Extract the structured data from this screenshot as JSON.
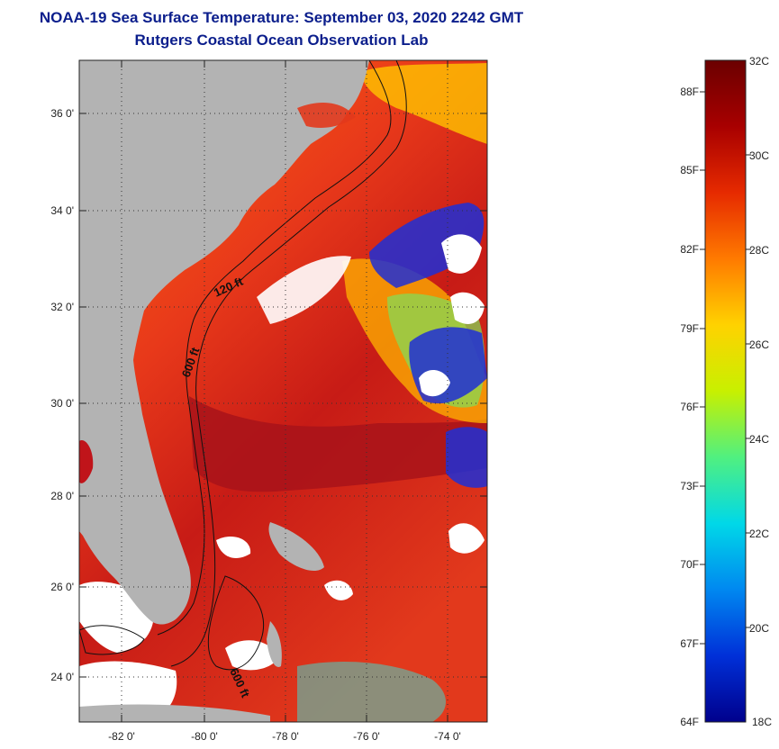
{
  "header": {
    "title": "NOAA-19 Sea Surface Temperature:  September 03, 2020 2242 GMT",
    "subtitle": "Rutgers Coastal Ocean Observation Lab"
  },
  "map": {
    "lat_ticks": [
      "24 0'",
      "26 0'",
      "28 0'",
      "30 0'",
      "32 0'",
      "34 0'",
      "36 0'"
    ],
    "lon_ticks": [
      "-82 0'",
      "-80 0'",
      "-78 0'",
      "-76 0'",
      "-74 0'"
    ],
    "contour_labels": [
      "120 ft",
      "600 ft",
      "600 ft"
    ],
    "colors": {
      "land": "#b3b3b3",
      "cloud": "#ffffff",
      "warm": "#e2391c",
      "hot": "#a3111a",
      "cool": "#1f2fd6"
    }
  },
  "colorbar": {
    "celsius_labels": [
      "32C",
      "30C",
      "28C",
      "26C",
      "24C",
      "22C",
      "20C",
      "18C"
    ],
    "fahrenheit_labels": [
      "88F",
      "85F",
      "82F",
      "79F",
      "76F",
      "73F",
      "70F",
      "67F",
      "64F"
    ],
    "gradient": [
      "#6b0000",
      "#a80000",
      "#e62a00",
      "#ff7a00",
      "#ffd200",
      "#c8f000",
      "#50f080",
      "#00d8e8",
      "#0088f0",
      "#0030d8",
      "#00008c"
    ]
  }
}
